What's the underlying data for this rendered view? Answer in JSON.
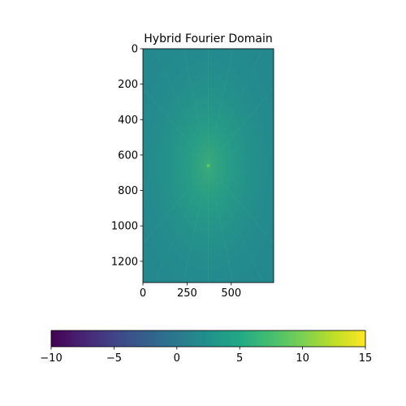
{
  "chart_data": {
    "type": "heatmap",
    "title": "Hybrid Fourier Domain",
    "image_width": 740,
    "image_height": 1320,
    "x_ticks": [
      0,
      250,
      500
    ],
    "y_ticks": [
      0,
      200,
      400,
      600,
      800,
      1000,
      1200
    ],
    "colorbar": {
      "colormap": "viridis",
      "orientation": "horizontal",
      "min": -10,
      "max": 15,
      "ticks": [
        -10,
        -5,
        0,
        5,
        10,
        15
      ],
      "tick_labels": [
        "−10",
        "−5",
        "0",
        "5",
        "10",
        "15"
      ]
    },
    "image_description": {
      "background_value": 2.5,
      "peak_value": 7,
      "peak_location": [
        370,
        660
      ],
      "colors": {
        "background": "#23898e",
        "mid": "#27a882",
        "peak": "#4ec36b"
      }
    }
  }
}
